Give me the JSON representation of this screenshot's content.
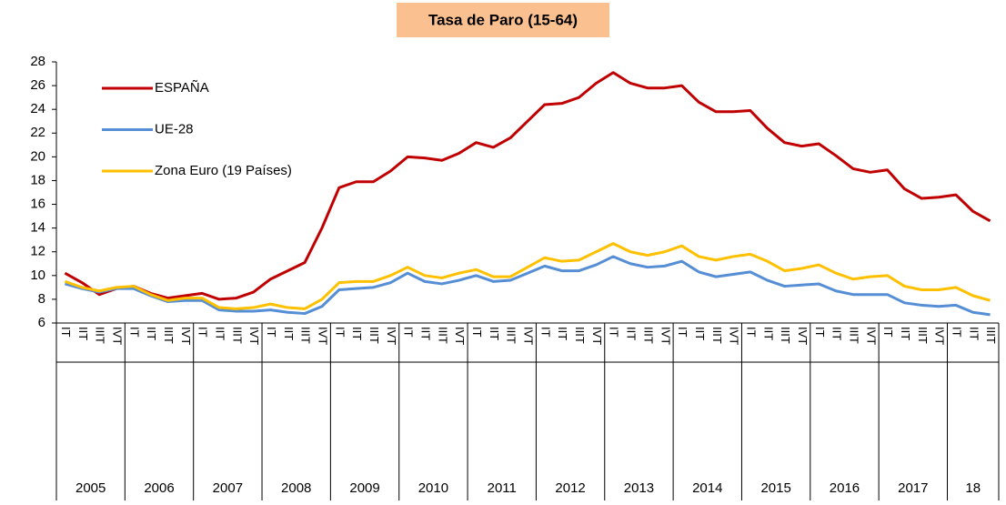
{
  "chart_data": {
    "type": "line",
    "title": "Tasa de Paro (15-64)",
    "categories": [
      "IT",
      "IIT",
      "IIIT",
      "IVT",
      "IT",
      "IIT",
      "IIIT",
      "IVT",
      "IT",
      "IIT",
      "IIIT",
      "IVT",
      "IT",
      "IIT",
      "IIIT",
      "IVT",
      "IT",
      "IIT",
      "IIIT",
      "IVT",
      "IT",
      "IIT",
      "IIIT",
      "IVT",
      "IT",
      "IIT",
      "IIIT",
      "IVT",
      "IT",
      "IIT",
      "IIIT",
      "IVT",
      "IT",
      "IIT",
      "IIIT",
      "IVT",
      "IT",
      "IIT",
      "IIIT",
      "IVT",
      "IT",
      "IIT",
      "IIIT",
      "IVT",
      "IT",
      "IIT",
      "IIIT",
      "IVT",
      "IT",
      "IIT",
      "IIIT",
      "IVT",
      "IT",
      "IIT",
      "IIIT"
    ],
    "years": [
      "2005",
      "2006",
      "2007",
      "2008",
      "2009",
      "2010",
      "2011",
      "2012",
      "2013",
      "2014",
      "2015",
      "2016",
      "2017",
      "18"
    ],
    "series": [
      {
        "name": "ESPAÑA",
        "color": "#c00000",
        "values": [
          10.2,
          9.4,
          8.4,
          8.9,
          9.1,
          8.5,
          8.1,
          8.3,
          8.5,
          8.0,
          8.1,
          8.6,
          9.7,
          10.4,
          11.1,
          14.0,
          17.4,
          17.9,
          17.9,
          18.8,
          20.0,
          19.9,
          19.7,
          20.3,
          21.2,
          20.8,
          21.6,
          23.0,
          24.4,
          24.5,
          25.0,
          26.2,
          27.1,
          26.2,
          25.8,
          25.8,
          26.0,
          24.6,
          23.8,
          23.8,
          23.9,
          22.4,
          21.2,
          20.9,
          21.1,
          20.1,
          19.0,
          18.7,
          18.9,
          17.3,
          16.5,
          16.6,
          16.8,
          15.4,
          14.6
        ]
      },
      {
        "name": "UE-28",
        "color": "#558ed5",
        "values": [
          9.3,
          8.9,
          8.6,
          8.9,
          8.9,
          8.3,
          7.8,
          7.9,
          7.9,
          7.1,
          7.0,
          7.0,
          7.1,
          6.9,
          6.8,
          7.4,
          8.8,
          8.9,
          9.0,
          9.4,
          10.2,
          9.5,
          9.3,
          9.6,
          10.0,
          9.5,
          9.6,
          10.2,
          10.8,
          10.4,
          10.4,
          10.9,
          11.6,
          11.0,
          10.7,
          10.8,
          11.2,
          10.3,
          9.9,
          10.1,
          10.3,
          9.6,
          9.1,
          9.2,
          9.3,
          8.7,
          8.4,
          8.4,
          8.4,
          7.7,
          7.5,
          7.4,
          7.5,
          6.9,
          6.7
        ]
      },
      {
        "name": "Zona Euro (19 Países)",
        "color": "#ffc000",
        "values": [
          9.5,
          9.0,
          8.7,
          9.0,
          9.1,
          8.4,
          7.9,
          8.1,
          8.1,
          7.3,
          7.2,
          7.3,
          7.6,
          7.3,
          7.2,
          8.0,
          9.4,
          9.5,
          9.5,
          10.0,
          10.7,
          10.0,
          9.8,
          10.2,
          10.5,
          9.9,
          9.9,
          10.7,
          11.5,
          11.2,
          11.3,
          12.0,
          12.7,
          12.0,
          11.7,
          12.0,
          12.5,
          11.6,
          11.3,
          11.6,
          11.8,
          11.2,
          10.4,
          10.6,
          10.9,
          10.2,
          9.7,
          9.9,
          10.0,
          9.1,
          8.8,
          8.8,
          9.0,
          8.3,
          7.9
        ]
      }
    ],
    "ylim": [
      6,
      28
    ],
    "yticks": [
      6,
      8,
      10,
      12,
      14,
      16,
      18,
      20,
      22,
      24,
      26,
      28
    ],
    "grid": false,
    "legend": "top-left"
  }
}
